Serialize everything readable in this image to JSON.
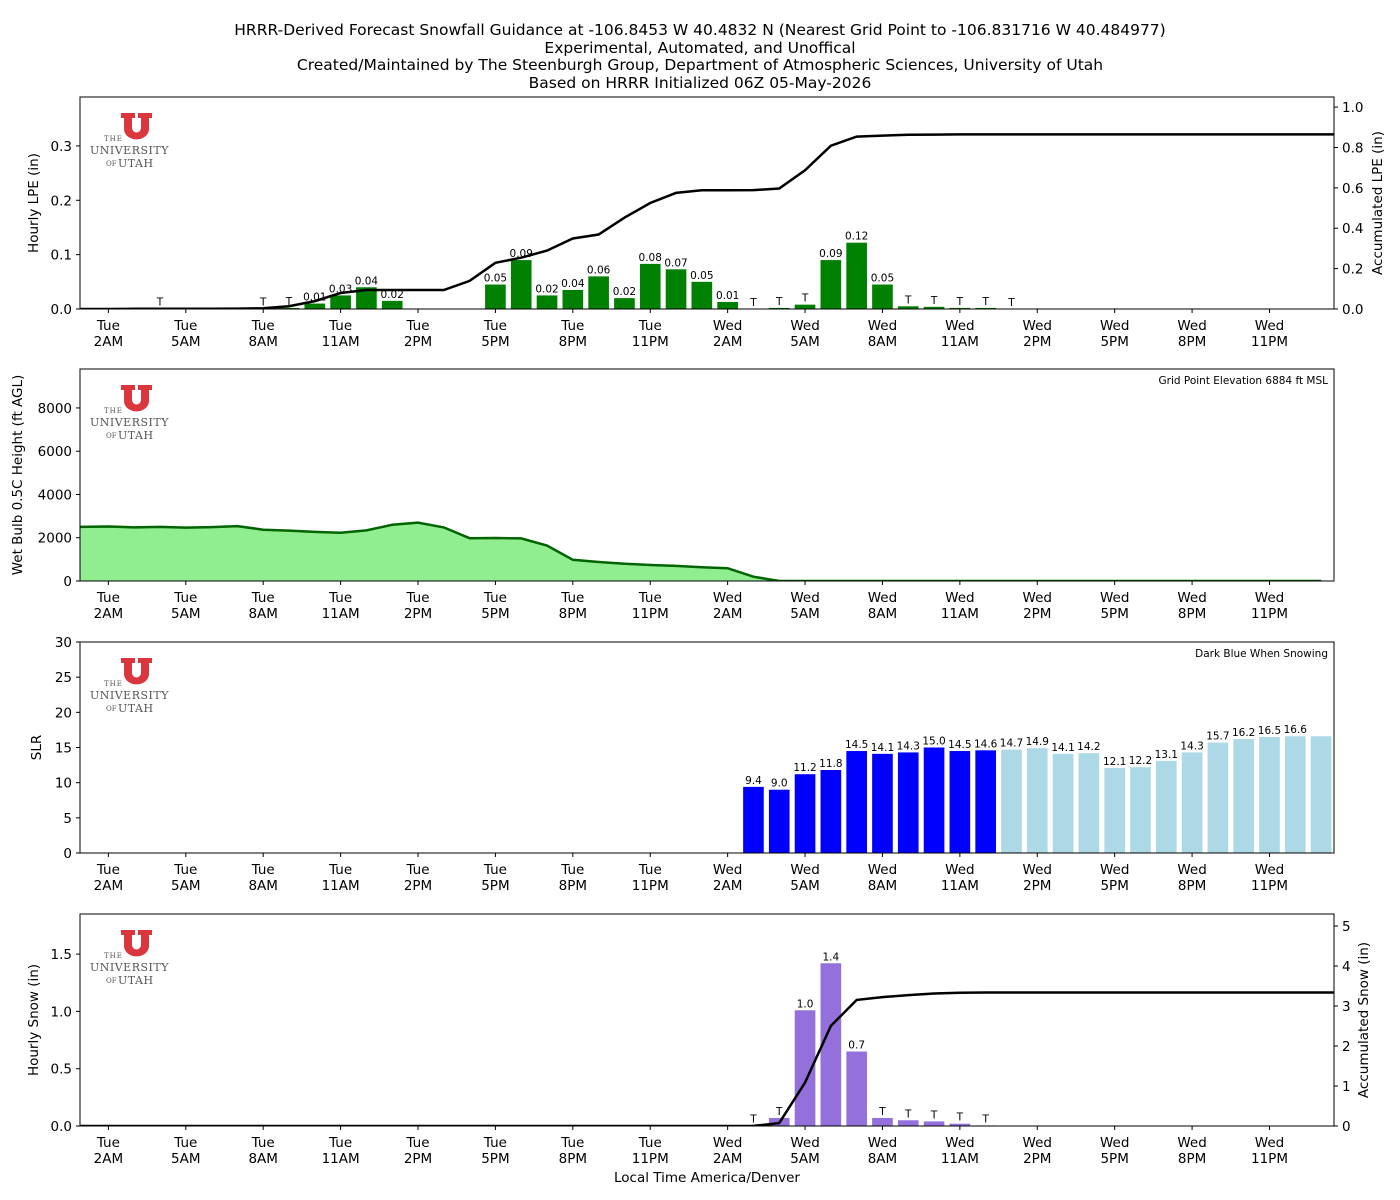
{
  "titles": [
    "HRRR-Derived Forecast Snowfall Guidance at -106.8453 W 40.4832 N (Nearest Grid Point to -106.831716 W 40.484977)",
    "Experimental, Automated, and Unoffical",
    "Created/Maintained by The Steenburgh Group, Department of Atmospheric Sciences, University of Utah",
    "Based on HRRR Initialized 06Z 05-May-2026"
  ],
  "logo": {
    "the": "THE",
    "university": "UNIVERSITY",
    "of": "OF",
    "utah": "UTAH",
    "color": "#d9363e"
  },
  "x_ticks": [
    {
      "day": "Tue",
      "time": "2AM"
    },
    {
      "day": "Tue",
      "time": "5AM"
    },
    {
      "day": "Tue",
      "time": "8AM"
    },
    {
      "day": "Tue",
      "time": "11AM"
    },
    {
      "day": "Tue",
      "time": "2PM"
    },
    {
      "day": "Tue",
      "time": "5PM"
    },
    {
      "day": "Tue",
      "time": "8PM"
    },
    {
      "day": "Tue",
      "time": "11PM"
    },
    {
      "day": "Wed",
      "time": "2AM"
    },
    {
      "day": "Wed",
      "time": "5AM"
    },
    {
      "day": "Wed",
      "time": "8AM"
    },
    {
      "day": "Wed",
      "time": "11AM"
    },
    {
      "day": "Wed",
      "time": "2PM"
    },
    {
      "day": "Wed",
      "time": "5PM"
    },
    {
      "day": "Wed",
      "time": "8PM"
    },
    {
      "day": "Wed",
      "time": "11PM"
    }
  ],
  "x_label": "Local Time America/Denver",
  "chart_data": [
    {
      "type": "bar",
      "name": "hourly-lpe",
      "ylabel": "Hourly LPE (in)",
      "ylabel_right": "Accumulated LPE (in)",
      "ylim": [
        0,
        0.39
      ],
      "ylim_right": [
        0,
        1.05
      ],
      "yticks": [
        "0.0",
        "0.1",
        "0.2",
        "0.3"
      ],
      "yticks_right": [
        "0.0",
        "0.2",
        "0.4",
        "0.6",
        "0.8",
        "1.0"
      ],
      "bar_color": "#008000",
      "x_hours": [
        1,
        2,
        3,
        4,
        5,
        6,
        7,
        8,
        9,
        10,
        11,
        12,
        13,
        14,
        15,
        16,
        17,
        18,
        19,
        20,
        21,
        22,
        23,
        24,
        25,
        26,
        27,
        28,
        29,
        30,
        31,
        32,
        33,
        34,
        35,
        36,
        37,
        38,
        39,
        40,
        41,
        42,
        43,
        44,
        45,
        46,
        47,
        48
      ],
      "values": [
        0,
        0,
        0.001,
        0,
        0,
        0,
        0.001,
        0.002,
        0.01,
        0.025,
        0.04,
        0.015,
        0,
        0,
        0,
        0.045,
        0.09,
        0.025,
        0.035,
        0.06,
        0.02,
        0.083,
        0.073,
        0.05,
        0.013,
        0,
        0.002,
        0.008,
        0.09,
        0.122,
        0.045,
        0.005,
        0.004,
        0.002,
        0.002,
        0,
        0,
        0,
        0,
        0,
        0,
        0,
        0,
        0,
        0,
        0,
        0,
        0
      ],
      "labels": [
        "",
        "",
        "T",
        "",
        "",
        "",
        "T",
        "T",
        "0.01",
        "0.03",
        "0.04",
        "0.02",
        "",
        "",
        "",
        "0.05",
        "0.09",
        "0.02",
        "0.04",
        "0.06",
        "0.02",
        "0.08",
        "0.07",
        "0.05",
        "0.01",
        "T",
        "T",
        "T",
        "0.09",
        "0.12",
        "0.05",
        "T",
        "T",
        "T",
        "T",
        "T",
        "",
        "",
        "",
        "",
        "",
        "",
        "",
        "",
        "",
        "",
        "",
        ""
      ],
      "accumulated": [
        0,
        0,
        0.001,
        0.001,
        0.001,
        0.001,
        0.002,
        0.004,
        0.014,
        0.039,
        0.079,
        0.094,
        0.094,
        0.094,
        0.094,
        0.139,
        0.229,
        0.254,
        0.289,
        0.349,
        0.369,
        0.452,
        0.525,
        0.575,
        0.588,
        0.588,
        0.589,
        0.597,
        0.687,
        0.809,
        0.854,
        0.859,
        0.863,
        0.864,
        0.865,
        0.865,
        0.865,
        0.865,
        0.865,
        0.865,
        0.865,
        0.865,
        0.865,
        0.865,
        0.865,
        0.865,
        0.865,
        0.865,
        0.865
      ]
    },
    {
      "type": "area",
      "name": "wetbulb-height",
      "ylabel": "Wet Bulb 0.5C Height (ft AGL)",
      "annotation": "Grid Point Elevation 6884 ft MSL",
      "ylim": [
        0,
        9800
      ],
      "yticks": [
        "0",
        "2000",
        "4000",
        "6000",
        "8000"
      ],
      "fill_color": "#90ee90",
      "line_color": "#006400",
      "values": [
        2500,
        2520,
        2480,
        2500,
        2470,
        2490,
        2540,
        2370,
        2330,
        2270,
        2230,
        2340,
        2600,
        2700,
        2480,
        1980,
        1990,
        1970,
        1640,
        980,
        880,
        800,
        740,
        700,
        640,
        590,
        200,
        0,
        0,
        0,
        0,
        0,
        0,
        0,
        0,
        0,
        0,
        0,
        0,
        0,
        0,
        0,
        0,
        0,
        0,
        0,
        0,
        0,
        0
      ]
    },
    {
      "type": "bar",
      "name": "slr",
      "ylabel": "SLR",
      "annotation": "Dark Blue When Snowing",
      "ylim": [
        0,
        30
      ],
      "yticks": [
        "0",
        "5",
        "10",
        "15",
        "20",
        "25",
        "30"
      ],
      "snow_color": "#0000ff",
      "nosnow_color": "#add8e6",
      "x_hours": [
        26,
        27,
        28,
        29,
        30,
        31,
        32,
        33,
        34,
        35,
        36,
        37,
        38,
        39,
        40,
        41,
        42,
        43,
        44,
        45,
        46,
        47,
        48
      ],
      "values": [
        9.4,
        9.0,
        11.2,
        11.8,
        14.5,
        14.1,
        14.3,
        15.0,
        14.5,
        14.6,
        14.7,
        14.9,
        14.1,
        14.2,
        12.1,
        12.2,
        13.1,
        14.3,
        15.7,
        16.2,
        16.5,
        16.6,
        16.6
      ],
      "labels": [
        "9.4",
        "9.0",
        "11.2",
        "11.8",
        "14.5",
        "14.1",
        "14.3",
        "15.0",
        "14.5",
        "14.6",
        "14.7",
        "14.9",
        "14.1",
        "14.2",
        "12.1",
        "12.2",
        "13.1",
        "14.3",
        "15.7",
        "16.2",
        "16.5",
        "16.6",
        ""
      ],
      "snowing": [
        true,
        true,
        true,
        true,
        true,
        true,
        true,
        true,
        true,
        true,
        false,
        false,
        false,
        false,
        false,
        false,
        false,
        false,
        false,
        false,
        false,
        false,
        false
      ]
    },
    {
      "type": "bar",
      "name": "hourly-snow",
      "ylabel": "Hourly Snow (in)",
      "ylabel_right": "Accumulated Snow (in)",
      "ylim": [
        0,
        1.85
      ],
      "ylim_right": [
        0,
        5.3
      ],
      "yticks": [
        "0.0",
        "0.5",
        "1.0",
        "1.5"
      ],
      "yticks_right": [
        "0",
        "1",
        "2",
        "3",
        "4",
        "5"
      ],
      "bar_color": "#9370db",
      "x_hours": [
        26,
        27,
        28,
        29,
        30,
        31,
        32,
        33,
        34,
        35,
        36
      ],
      "values": [
        0.003,
        0.07,
        1.01,
        1.42,
        0.65,
        0.07,
        0.05,
        0.04,
        0.02,
        0.005,
        0
      ],
      "labels": [
        "T",
        "T",
        "1.0",
        "1.4",
        "0.7",
        "T",
        "T",
        "T",
        "T",
        "T",
        ""
      ],
      "accumulated": [
        0,
        0,
        0,
        0,
        0,
        0,
        0,
        0,
        0,
        0,
        0,
        0,
        0,
        0,
        0,
        0,
        0,
        0,
        0,
        0,
        0,
        0,
        0,
        0,
        0,
        0,
        0.003,
        0.073,
        1.083,
        2.503,
        3.153,
        3.223,
        3.273,
        3.313,
        3.333,
        3.338,
        3.338,
        3.338,
        3.338,
        3.338,
        3.338,
        3.338,
        3.338,
        3.338,
        3.338,
        3.338,
        3.338,
        3.338,
        3.338
      ]
    }
  ]
}
